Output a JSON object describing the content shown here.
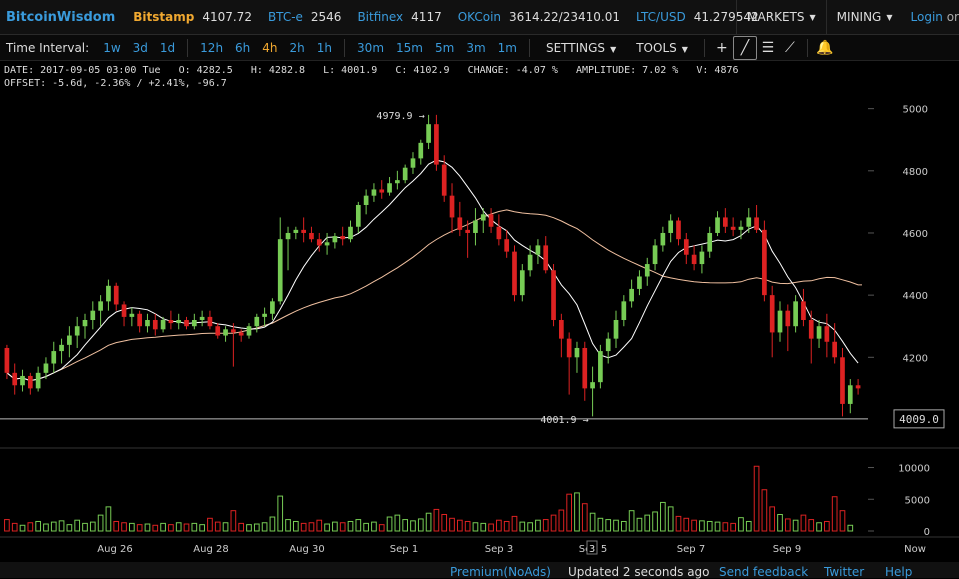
{
  "brand": "BitcoinWisdom",
  "tickers": [
    {
      "name": "Bitstamp",
      "value": "4107.72",
      "style": "orange"
    },
    {
      "name": "BTC-e",
      "value": "2546",
      "style": "blue"
    },
    {
      "name": "Bitfinex",
      "value": "4117",
      "style": "blue"
    },
    {
      "name": "OKCoin",
      "value": "3614.22/23410.01",
      "style": "blue"
    },
    {
      "name": "LTC/USD",
      "value": "41.279542",
      "style": "blue"
    }
  ],
  "nav": {
    "markets": "MARKETS",
    "mining": "MINING",
    "login": "Login",
    "or": "or"
  },
  "toolbar": {
    "label": "Time Interval:",
    "intervals": [
      "1w",
      "3d",
      "1d",
      "12h",
      "6h",
      "4h",
      "2h",
      "1h",
      "30m",
      "15m",
      "5m",
      "3m",
      "1m"
    ],
    "active": "4h",
    "settings": "SETTINGS",
    "tools": "TOOLS"
  },
  "info": {
    "line1": "DATE: 2017-09-05 03:00 Tue   O: 4282.5   H: 4282.8   L: 4001.9   C: 4102.9   CHANGE: -4.07 %   AMPLITUDE: 7.02 %   V: 4876",
    "line2": "OFFSET: -5.6d, -2.36% / +2.41%, -96.7"
  },
  "chart_data": {
    "type": "candlestick",
    "y_ticks": [
      5000,
      4800,
      4600,
      4400,
      4200
    ],
    "ylim": [
      3950,
      5060
    ],
    "volume_ticks": [
      "10000",
      "5000",
      "0"
    ],
    "volume_max": 11500,
    "x_labels": [
      "Aug 26",
      "Aug 28",
      "Aug 30",
      "Sep 1",
      "Sep 3",
      "Sep 5",
      "Sep 7",
      "Sep 9",
      "Now"
    ],
    "x_cursor_label": "3",
    "high_marker": "4979.9",
    "low_marker": "4001.9",
    "current_price": "4009.0",
    "colors": {
      "up": "#77cc55",
      "down": "#dd2222",
      "ma_fast": "#ffffff",
      "ma_slow": "#f0c0a0"
    },
    "candles": [
      [
        4230,
        4240,
        4130,
        4150
      ],
      [
        4150,
        4180,
        4080,
        4110
      ],
      [
        4110,
        4160,
        4090,
        4140
      ],
      [
        4140,
        4150,
        4080,
        4100
      ],
      [
        4100,
        4170,
        4090,
        4150
      ],
      [
        4150,
        4200,
        4130,
        4180
      ],
      [
        4180,
        4250,
        4150,
        4220
      ],
      [
        4220,
        4260,
        4180,
        4240
      ],
      [
        4240,
        4300,
        4200,
        4270
      ],
      [
        4270,
        4330,
        4230,
        4300
      ],
      [
        4300,
        4340,
        4260,
        4320
      ],
      [
        4320,
        4380,
        4290,
        4350
      ],
      [
        4350,
        4400,
        4300,
        4380
      ],
      [
        4380,
        4450,
        4350,
        4430
      ],
      [
        4430,
        4440,
        4350,
        4370
      ],
      [
        4370,
        4380,
        4300,
        4330
      ],
      [
        4330,
        4360,
        4300,
        4340
      ],
      [
        4340,
        4350,
        4280,
        4300
      ],
      [
        4300,
        4340,
        4280,
        4320
      ],
      [
        4320,
        4340,
        4270,
        4290
      ],
      [
        4290,
        4330,
        4280,
        4320
      ],
      [
        4320,
        4350,
        4290,
        4310
      ],
      [
        4310,
        4340,
        4290,
        4320
      ],
      [
        4320,
        4330,
        4290,
        4300
      ],
      [
        4300,
        4340,
        4290,
        4320
      ],
      [
        4320,
        4350,
        4300,
        4330
      ],
      [
        4330,
        4350,
        4290,
        4300
      ],
      [
        4300,
        4310,
        4260,
        4270
      ],
      [
        4270,
        4300,
        4250,
        4290
      ],
      [
        4290,
        4310,
        4170,
        4280
      ],
      [
        4280,
        4290,
        4250,
        4270
      ],
      [
        4270,
        4310,
        4260,
        4300
      ],
      [
        4300,
        4340,
        4280,
        4330
      ],
      [
        4330,
        4360,
        4300,
        4340
      ],
      [
        4340,
        4390,
        4320,
        4380
      ],
      [
        4380,
        4650,
        4370,
        4580
      ],
      [
        4580,
        4620,
        4480,
        4600
      ],
      [
        4600,
        4620,
        4580,
        4610
      ],
      [
        4610,
        4650,
        4570,
        4600
      ],
      [
        4600,
        4620,
        4570,
        4580
      ],
      [
        4580,
        4600,
        4540,
        4560
      ],
      [
        4560,
        4600,
        4530,
        4570
      ],
      [
        4570,
        4600,
        4550,
        4590
      ],
      [
        4590,
        4620,
        4560,
        4580
      ],
      [
        4580,
        4640,
        4570,
        4620
      ],
      [
        4620,
        4700,
        4600,
        4690
      ],
      [
        4690,
        4740,
        4660,
        4720
      ],
      [
        4720,
        4760,
        4700,
        4740
      ],
      [
        4740,
        4770,
        4710,
        4730
      ],
      [
        4730,
        4780,
        4720,
        4760
      ],
      [
        4760,
        4800,
        4740,
        4770
      ],
      [
        4770,
        4820,
        4760,
        4810
      ],
      [
        4810,
        4860,
        4790,
        4840
      ],
      [
        4840,
        4900,
        4820,
        4890
      ],
      [
        4890,
        4980,
        4870,
        4950
      ],
      [
        4950,
        4980,
        4800,
        4820
      ],
      [
        4820,
        4850,
        4700,
        4720
      ],
      [
        4720,
        4760,
        4600,
        4650
      ],
      [
        4650,
        4700,
        4590,
        4610
      ],
      [
        4610,
        4640,
        4520,
        4600
      ],
      [
        4600,
        4680,
        4560,
        4640
      ],
      [
        4640,
        4680,
        4600,
        4660
      ],
      [
        4660,
        4680,
        4600,
        4620
      ],
      [
        4620,
        4660,
        4560,
        4580
      ],
      [
        4580,
        4610,
        4520,
        4540
      ],
      [
        4540,
        4560,
        4380,
        4400
      ],
      [
        4400,
        4500,
        4380,
        4480
      ],
      [
        4480,
        4560,
        4460,
        4530
      ],
      [
        4530,
        4580,
        4500,
        4560
      ],
      [
        4560,
        4590,
        4470,
        4480
      ],
      [
        4480,
        4500,
        4300,
        4320
      ],
      [
        4320,
        4340,
        4200,
        4260
      ],
      [
        4260,
        4280,
        4080,
        4200
      ],
      [
        4200,
        4250,
        4150,
        4230
      ],
      [
        4230,
        4250,
        4060,
        4100
      ],
      [
        4100,
        4170,
        4010,
        4120
      ],
      [
        4120,
        4240,
        4100,
        4220
      ],
      [
        4220,
        4280,
        4180,
        4260
      ],
      [
        4260,
        4350,
        4230,
        4320
      ],
      [
        4320,
        4400,
        4300,
        4380
      ],
      [
        4380,
        4450,
        4360,
        4420
      ],
      [
        4420,
        4480,
        4400,
        4460
      ],
      [
        4460,
        4520,
        4430,
        4500
      ],
      [
        4500,
        4580,
        4480,
        4560
      ],
      [
        4560,
        4620,
        4540,
        4600
      ],
      [
        4600,
        4660,
        4570,
        4640
      ],
      [
        4640,
        4650,
        4560,
        4580
      ],
      [
        4580,
        4600,
        4500,
        4530
      ],
      [
        4530,
        4560,
        4480,
        4500
      ],
      [
        4500,
        4560,
        4470,
        4540
      ],
      [
        4540,
        4620,
        4520,
        4600
      ],
      [
        4600,
        4670,
        4590,
        4650
      ],
      [
        4650,
        4680,
        4600,
        4620
      ],
      [
        4620,
        4650,
        4590,
        4610
      ],
      [
        4610,
        4640,
        4580,
        4620
      ],
      [
        4620,
        4680,
        4600,
        4650
      ],
      [
        4650,
        4690,
        4600,
        4610
      ],
      [
        4610,
        4640,
        4380,
        4400
      ],
      [
        4400,
        4430,
        4200,
        4280
      ],
      [
        4280,
        4380,
        4250,
        4350
      ],
      [
        4350,
        4370,
        4220,
        4300
      ],
      [
        4300,
        4400,
        4280,
        4380
      ],
      [
        4380,
        4420,
        4300,
        4320
      ],
      [
        4320,
        4350,
        4180,
        4260
      ],
      [
        4260,
        4320,
        4230,
        4300
      ],
      [
        4300,
        4340,
        4200,
        4250
      ],
      [
        4250,
        4310,
        4180,
        4200
      ],
      [
        4200,
        4230,
        4010,
        4050
      ],
      [
        4050,
        4130,
        4020,
        4110
      ],
      [
        4110,
        4130,
        4080,
        4100
      ]
    ],
    "volumes": [
      1800,
      1200,
      900,
      1300,
      1500,
      1100,
      1400,
      1600,
      1000,
      1700,
      1200,
      1400,
      2500,
      3800,
      1500,
      1300,
      1200,
      1000,
      1100,
      900,
      1200,
      1000,
      1300,
      1100,
      1200,
      1000,
      2000,
      1400,
      1300,
      3200,
      1200,
      1000,
      1100,
      1300,
      2200,
      5500,
      1800,
      1500,
      1200,
      1300,
      1700,
      1100,
      1400,
      1300,
      1500,
      1800,
      1200,
      1400,
      1000,
      2200,
      2500,
      1800,
      1600,
      1900,
      2800,
      3400,
      2600,
      2000,
      1700,
      1500,
      1300,
      1200,
      1100,
      1700,
      1500,
      2300,
      1400,
      1300,
      1700,
      1800,
      2500,
      3300,
      5800,
      6000,
      4300,
      2800,
      2000,
      1800,
      1700,
      1500,
      3200,
      2000,
      2500,
      3000,
      4500,
      3800,
      2300,
      2000,
      1700,
      1600,
      1500,
      1400,
      1300,
      1200,
      2100,
      1500,
      10200,
      6500,
      3800,
      2600,
      1900,
      1700,
      2500,
      1800,
      1300,
      1500,
      5400,
      3200,
      900
    ]
  },
  "footer": {
    "premium": "Premium(NoAds)",
    "updated": "Updated 2 seconds ago",
    "feedback": "Send feedback",
    "twitter": "Twitter",
    "help": "Help"
  }
}
